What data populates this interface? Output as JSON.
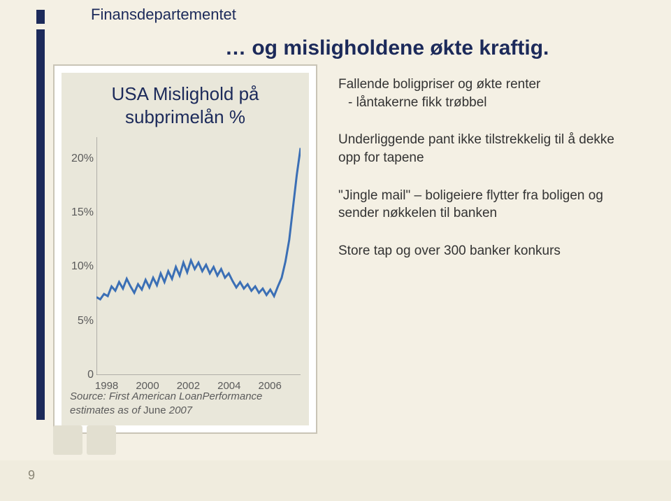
{
  "dept": "Finansdepartementet",
  "title": "… og misligholdene økte kraftig.",
  "chart": {
    "title_line1": "USA Mislighold på",
    "title_line2": "subprimelån %",
    "type": "line",
    "series_color": "#3b6fb5",
    "background_color": "#e9e7da",
    "panel_bg": "#ffffff",
    "axis_color": "#777777",
    "grid_color": "#b8b4a6",
    "y_ticks": [
      0,
      5,
      10,
      15,
      20
    ],
    "ylim": [
      0,
      22
    ],
    "x_labels": [
      "1998",
      "2000",
      "2002",
      "2004",
      "2006"
    ],
    "x_positions": [
      0.05,
      0.25,
      0.45,
      0.65,
      0.85
    ],
    "values": [
      7.2,
      7.0,
      7.5,
      7.3,
      8.2,
      7.8,
      8.6,
      8.0,
      8.9,
      8.2,
      7.6,
      8.4,
      7.9,
      8.8,
      8.1,
      9.0,
      8.3,
      9.4,
      8.6,
      9.6,
      8.9,
      10.0,
      9.2,
      10.4,
      9.5,
      10.6,
      9.8,
      10.4,
      9.6,
      10.2,
      9.4,
      10.0,
      9.2,
      9.8,
      9.0,
      9.4,
      8.7,
      8.1,
      8.6,
      8.0,
      8.4,
      7.8,
      8.2,
      7.6,
      8.0,
      7.4,
      7.9,
      7.3,
      8.2,
      9.0,
      10.5,
      12.5,
      15.5,
      18.5,
      21.0
    ],
    "line_width": 3,
    "source_line1": "Source: First American LoanPerformance",
    "source_line2_a": "estimates as of ",
    "source_month": "June",
    "source_line2_b": " 2007",
    "axis_fontsize": 15
  },
  "bullets": {
    "b1": "Fallende boligpriser og økte renter",
    "b1_sub": "- låntakerne fikk trøbbel",
    "b2": "Underliggende pant ikke tilstrekkelig til å dekke opp for tapene",
    "b3": "\"Jingle mail\" – boligeiere flytter fra boligen og sender nøkkelen til banken",
    "b4": "Store tap og over 300 banker konkurs"
  },
  "page_number": "9",
  "colors": {
    "slide_bg": "#f4f0e4",
    "rail": "#1c2a5a",
    "heading": "#1c2a5a",
    "body_text": "#333333"
  }
}
